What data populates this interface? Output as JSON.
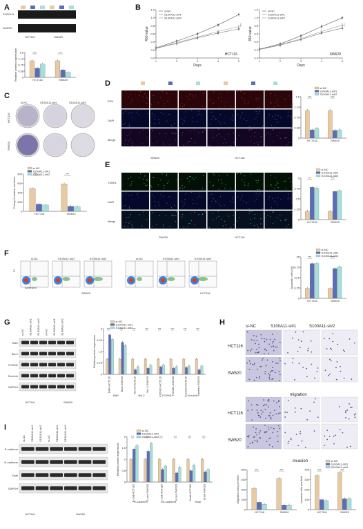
{
  "colors": {
    "nc": "#e8c9a0",
    "si1": "#5b6db5",
    "si2": "#a5dedb",
    "ncLine": "#555555",
    "si1Line": "#777777",
    "si2Line": "#999999"
  },
  "legend": {
    "nc": "si-NC",
    "si1": "S100A11-si#1",
    "si2": "S100A11-si#2"
  },
  "panelA": {
    "label": "A",
    "rows": [
      "S100A11",
      "GAPDH"
    ],
    "cells": [
      "HCT116",
      "SW620"
    ],
    "ylabel": "Relative protein expression",
    "chart_data": {
      "type": "bar",
      "categories": [
        "HCT116",
        "SW620"
      ],
      "ylim": [
        0,
        1.5
      ],
      "series": [
        {
          "name": "si-NC",
          "values": [
            1.0,
            1.0
          ]
        },
        {
          "name": "S100A11-si#1",
          "values": [
            0.55,
            0.45
          ]
        },
        {
          "name": "S100A11-si#2",
          "values": [
            0.8,
            0.3
          ]
        }
      ]
    }
  },
  "panelB": {
    "label": "B",
    "charts": [
      {
        "cell": "HCT116",
        "xlabel": "Days",
        "ylabel": "450 value",
        "x": [
          1,
          2,
          3,
          4,
          5
        ],
        "ylim": [
          0,
          1.2
        ],
        "series": [
          {
            "name": "si-NC",
            "values": [
              0.25,
              0.42,
              0.6,
              0.82,
              1.08
            ]
          },
          {
            "name": "S100A11-si#1",
            "values": [
              0.24,
              0.36,
              0.5,
              0.62,
              0.72
            ]
          },
          {
            "name": "S100A11-si#2",
            "values": [
              0.24,
              0.38,
              0.52,
              0.66,
              0.78
            ]
          }
        ]
      },
      {
        "cell": "SW620",
        "xlabel": "Days",
        "ylabel": "450 value",
        "x": [
          1,
          2,
          3,
          4,
          5
        ],
        "ylim": [
          0,
          1.2
        ],
        "series": [
          {
            "name": "si-NC",
            "values": [
              0.22,
              0.35,
              0.55,
              0.78,
              1.0
            ]
          },
          {
            "name": "S100A11-si#1",
            "values": [
              0.21,
              0.32,
              0.46,
              0.62,
              0.74
            ]
          },
          {
            "name": "S100A11-si#2",
            "values": [
              0.21,
              0.33,
              0.48,
              0.66,
              0.82
            ]
          }
        ]
      }
    ]
  },
  "panelC": {
    "label": "C",
    "cols": [
      "si-NC",
      "S100A11-si#1",
      "S100A11-si#2"
    ],
    "rows": [
      "HCT116",
      "SW620"
    ],
    "ylabel": "Colony formation numbers",
    "chart_data": {
      "type": "bar",
      "categories": [
        "HCT116",
        "SW620"
      ],
      "ylim": [
        0,
        800
      ],
      "series": [
        {
          "name": "si-NC",
          "values": [
            490,
            590
          ]
        },
        {
          "name": "S100A11-si#1",
          "values": [
            155,
            110
          ]
        },
        {
          "name": "S100A11-si#2",
          "values": [
            135,
            100
          ]
        }
      ]
    }
  },
  "panelD": {
    "label": "D",
    "rows": [
      "EDU",
      "DAPI",
      "Merge"
    ],
    "cells": [
      "SW620",
      "HCT116"
    ],
    "ylabel": "EDU positive cells (%)",
    "chart_data": {
      "type": "bar",
      "categories": [
        "HCT116",
        "SW620"
      ],
      "ylim": [
        0,
        1.5
      ],
      "series": [
        {
          "name": "si-NC",
          "values": [
            1.0,
            1.0
          ]
        },
        {
          "name": "S100A11-si#1",
          "values": [
            0.3,
            0.28
          ]
        },
        {
          "name": "S100A11-si#2",
          "values": [
            0.35,
            0.3
          ]
        }
      ]
    }
  },
  "panelE": {
    "label": "E",
    "rows": [
      "TUNEL",
      "DAPI",
      "Merge"
    ],
    "cells": [
      "SW620",
      "HCT116"
    ],
    "ylabel": "TUNEL positive cells (%)",
    "chart_data": {
      "type": "bar",
      "categories": [
        "HCT116",
        "SW620"
      ],
      "ylim": [
        0,
        5
      ],
      "series": [
        {
          "name": "si-NC",
          "values": [
            1.0,
            1.0
          ]
        },
        {
          "name": "S100A11-si#1",
          "values": [
            3.9,
            3.4
          ]
        },
        {
          "name": "S100A11-si#2",
          "values": [
            3.8,
            3.5
          ]
        }
      ]
    }
  },
  "panelF": {
    "label": "F",
    "cols": [
      "si-NC",
      "S100A11-si#1",
      "S100A11-si#2",
      "si-NC",
      "S100A11-si#1",
      "S100A11-si#2"
    ],
    "cells": [
      "SW620",
      "HCT116"
    ],
    "xlabel": "AnnexinV",
    "ylabel": "PI",
    "barYlabel": "Apoptotic cells (%)",
    "chart_data": {
      "type": "bar",
      "categories": [
        "HCT116",
        "SW620"
      ],
      "ylim": [
        0,
        25
      ],
      "series": [
        {
          "name": "si-NC",
          "values": [
            6,
            6
          ]
        },
        {
          "name": "S100A11-si#1",
          "values": [
            21,
            18
          ]
        },
        {
          "name": "S100A11-si#2",
          "values": [
            21,
            19
          ]
        }
      ]
    }
  },
  "panelG": {
    "label": "G",
    "lanes": [
      "si-NC",
      "S100A11-si#1",
      "S100A11-si#2",
      "si-NC",
      "S100A11-si#1",
      "S100A11-si#2"
    ],
    "rows": [
      "BAK",
      "Bcl-2",
      "FOXM1",
      "Survivin",
      "GAPDH"
    ],
    "cells": [
      "HCT116",
      "SW620"
    ],
    "ylabel": "Relative protein expression",
    "groups": [
      "BAK",
      "Bcl-2",
      "FOXM1",
      "Survivin"
    ],
    "chart_data": {
      "type": "bar",
      "categories": [
        "BAK-HCT116",
        "BAK-SW620",
        "Bcl-2-HCT116",
        "Bcl-2-SW620",
        "FOXM1-HCT116",
        "FOXM1-SW620",
        "Survivin-HCT116",
        "Survivin-SW620"
      ],
      "ylim": [
        0,
        3
      ],
      "series": [
        {
          "name": "si-NC",
          "values": [
            1,
            1,
            1,
            1,
            1,
            1,
            1,
            1
          ]
        },
        {
          "name": "S100A11-si#1",
          "values": [
            2.6,
            2.1,
            0.3,
            0.4,
            0.5,
            0.4,
            0.45,
            0.3
          ]
        },
        {
          "name": "S100A11-si#2",
          "values": [
            2.3,
            1.9,
            0.5,
            0.6,
            0.6,
            0.5,
            0.55,
            0.55
          ]
        }
      ]
    }
  },
  "panelH": {
    "label": "H",
    "cols": [
      "si-NC",
      "S100A11-si#1",
      "S100A11-si#2"
    ],
    "rows": [
      "HCT116",
      "SW620",
      "HCT116",
      "SW620"
    ],
    "mid": "migration",
    "bottom": "invasion"
  },
  "panelI": {
    "label": "I",
    "lanes": [
      "si-NC",
      "S100A11-si#1",
      "S100A11-si#2",
      "si-NC",
      "S100A11-si#1",
      "S100A11-si#2"
    ],
    "rows": [
      "E-cadherin",
      "N-cadherin",
      "Snail",
      "GAPDH"
    ],
    "cells": [
      "HCT116",
      "SW620"
    ],
    "ylabel": "Relative protein expression",
    "groups": [
      "E-cadherin",
      "N-cadherin",
      "Snail"
    ],
    "chart_data": {
      "type": "bar",
      "categories": [
        "E-cad-HCT116",
        "E-cad-SW620",
        "N-cad-HCT116",
        "N-cad-SW620",
        "Snail-HCT116",
        "Snail-SW620"
      ],
      "ylim": [
        0,
        2
      ],
      "series": [
        {
          "name": "si-NC",
          "values": [
            1,
            1,
            1,
            1,
            1,
            1
          ]
        },
        {
          "name": "S100A11-si#1",
          "values": [
            1.45,
            1.35,
            0.55,
            0.4,
            0.5,
            0.45
          ]
        },
        {
          "name": "S100A11-si#2",
          "values": [
            1.6,
            1.7,
            0.7,
            0.65,
            0.75,
            0.55
          ]
        }
      ]
    }
  },
  "migration": {
    "ylabel": "Migration cells per field",
    "chart_data": {
      "type": "bar",
      "categories": [
        "HCT116",
        "SW620"
      ],
      "ylim": [
        0,
        600
      ],
      "series": [
        {
          "name": "si-NC",
          "values": [
            320,
            470
          ]
        },
        {
          "name": "S100A11-si#1",
          "values": [
            110,
            70
          ]
        },
        {
          "name": "S100A11-si#2",
          "values": [
            80,
            70
          ]
        }
      ]
    }
  },
  "invasion": {
    "ylabel": "Invasion cells per field",
    "chart_data": {
      "type": "bar",
      "categories": [
        "HCT116",
        "SW620"
      ],
      "ylim": [
        0,
        400
      ],
      "series": [
        {
          "name": "si-NC",
          "values": [
            340,
            370
          ]
        },
        {
          "name": "S100A11-si#1",
          "values": [
            100,
            110
          ]
        },
        {
          "name": "S100A11-si#2",
          "values": [
            90,
            110
          ]
        }
      ]
    }
  },
  "sig": "***"
}
